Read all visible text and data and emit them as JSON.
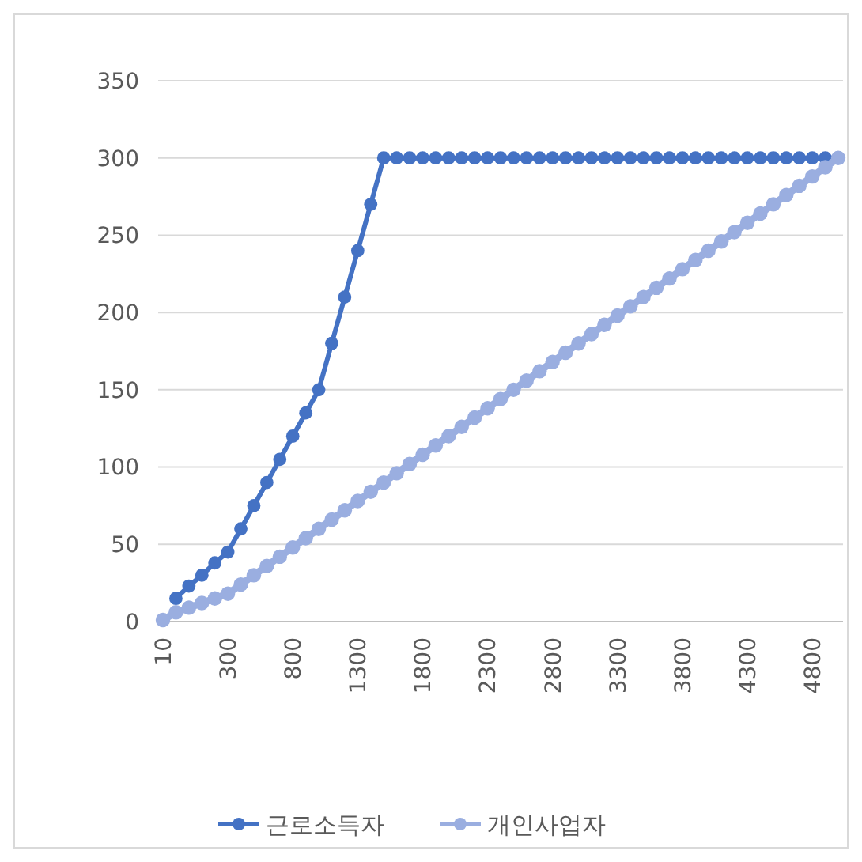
{
  "chart_data": {
    "type": "line",
    "categories": [
      "10",
      null,
      null,
      null,
      null,
      "300",
      null,
      null,
      null,
      null,
      "800",
      null,
      null,
      null,
      null,
      "1300",
      null,
      null,
      null,
      null,
      "1800",
      null,
      null,
      null,
      null,
      "2300",
      null,
      null,
      null,
      null,
      "2800",
      null,
      null,
      null,
      null,
      "3300",
      null,
      null,
      null,
      null,
      "3800",
      null,
      null,
      null,
      null,
      "4300",
      null,
      null,
      null,
      null,
      "4800",
      null,
      null
    ],
    "series": [
      {
        "name": "근로소득자",
        "color": "#4472c4",
        "values": [
          null,
          15,
          23,
          30,
          38,
          45,
          60,
          75,
          90,
          105,
          120,
          135,
          150,
          180,
          210,
          240,
          270,
          300,
          300,
          300,
          300,
          300,
          300,
          300,
          300,
          300,
          300,
          300,
          300,
          300,
          300,
          300,
          300,
          300,
          300,
          300,
          300,
          300,
          300,
          300,
          300,
          300,
          300,
          300,
          300,
          300,
          300,
          300,
          300,
          300,
          300,
          300,
          300
        ]
      },
      {
        "name": "개인사업자",
        "color": "#9aaee0",
        "values": [
          1,
          6,
          9,
          12,
          15,
          18,
          24,
          30,
          36,
          42,
          48,
          54,
          60,
          66,
          72,
          78,
          84,
          90,
          96,
          102,
          108,
          114,
          120,
          126,
          132,
          138,
          144,
          150,
          156,
          162,
          168,
          174,
          180,
          186,
          192,
          198,
          204,
          210,
          216,
          222,
          228,
          234,
          240,
          246,
          252,
          258,
          264,
          270,
          276,
          282,
          288,
          294,
          300
        ]
      }
    ],
    "ylim": [
      0,
      350
    ],
    "yticks": [
      0,
      50,
      100,
      150,
      200,
      250,
      300,
      350
    ],
    "grid": "y",
    "legend": "bottom",
    "marker": "circle",
    "line_style": "solid"
  }
}
